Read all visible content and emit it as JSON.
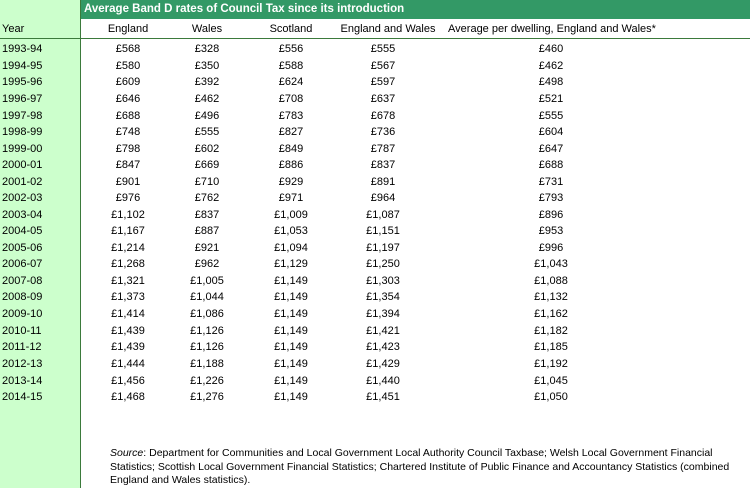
{
  "title": "Average Band D rates of Council Tax since its introduction",
  "headers": [
    "Year",
    "England",
    "Wales",
    "Scotland",
    "England and Wales",
    "Average per dwelling, England and Wales*"
  ],
  "rows": [
    [
      "1993-94",
      "£568",
      "£328",
      "£556",
      "£555",
      "£460"
    ],
    [
      "1994-95",
      "£580",
      "£350",
      "£588",
      "£567",
      "£462"
    ],
    [
      "1995-96",
      "£609",
      "£392",
      "£624",
      "£597",
      "£498"
    ],
    [
      "1996-97",
      "£646",
      "£462",
      "£708",
      "£637",
      "£521"
    ],
    [
      "1997-98",
      "£688",
      "£496",
      "£783",
      "£678",
      "£555"
    ],
    [
      "1998-99",
      "£748",
      "£555",
      "£827",
      "£736",
      "£604"
    ],
    [
      "1999-00",
      "£798",
      "£602",
      "£849",
      "£787",
      "£647"
    ],
    [
      "2000-01",
      "£847",
      "£669",
      "£886",
      "£837",
      "£688"
    ],
    [
      "2001-02",
      "£901",
      "£710",
      "£929",
      "£891",
      "£731"
    ],
    [
      "2002-03",
      "£976",
      "£762",
      "£971",
      "£964",
      "£793"
    ],
    [
      "2003-04",
      "£1,102",
      "£837",
      "£1,009",
      "£1,087",
      "£896"
    ],
    [
      "2004-05",
      "£1,167",
      "£887",
      "£1,053",
      "£1,151",
      "£953"
    ],
    [
      "2005-06",
      "£1,214",
      "£921",
      "£1,094",
      "£1,197",
      "£996"
    ],
    [
      "2006-07",
      "£1,268",
      "£962",
      "£1,129",
      "£1,250",
      "£1,043"
    ],
    [
      "2007-08",
      "£1,321",
      "£1,005",
      "£1,149",
      "£1,303",
      "£1,088"
    ],
    [
      "2008-09",
      "£1,373",
      "£1,044",
      "£1,149",
      "£1,354",
      "£1,132"
    ],
    [
      "2009-10",
      "£1,414",
      "£1,086",
      "£1,149",
      "£1,394",
      "£1,162"
    ],
    [
      "2010-11",
      "£1,439",
      "£1,126",
      "£1,149",
      "£1,421",
      "£1,182"
    ],
    [
      "2011-12",
      "£1,439",
      "£1,126",
      "£1,149",
      "£1,423",
      "£1,185"
    ],
    [
      "2012-13",
      "£1,444",
      "£1,188",
      "£1,149",
      "£1,429",
      "£1,192"
    ],
    [
      "2013-14",
      "£1,456",
      "£1,226",
      "£1,149",
      "£1,440",
      "£1,045"
    ],
    [
      "2014-15",
      "£1,468",
      "£1,276",
      "£1,149",
      "£1,451",
      "£1,050"
    ]
  ],
  "source": {
    "label": "Source",
    "text": ": Department for Communities and Local Government Local Authority Council Taxbase; Welsh Local Government Financial Statistics; Scottish Local Government Financial Statistics; Chartered Institute of Public Finance and Accountancy Statistics (combined England and Wales statistics)."
  },
  "colors": {
    "title_bg": "#339966",
    "year_col_bg": "#ccffcc",
    "rule": "#3b7a3b"
  }
}
